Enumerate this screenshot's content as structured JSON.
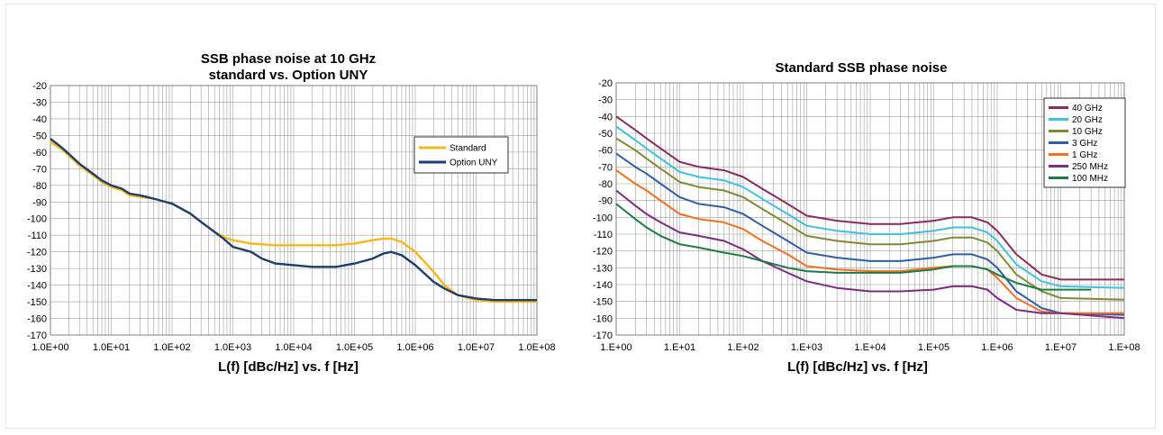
{
  "chart_data": [
    {
      "type": "line",
      "title": "SSB phase noise at 10 GHz",
      "subtitle": "standard vs. Option UNY",
      "xlabel": "L(f) [dBc/Hz] vs. f [Hz]",
      "ylabel": "",
      "x_scale": "log",
      "xlim": [
        1,
        100000000
      ],
      "ylim": [
        -170,
        -20
      ],
      "x_tick_labels": [
        "1.0E+00",
        "1.0E+01",
        "1.0E+02",
        "1.0E+03",
        "1.0E+04",
        "1.0E+05",
        "1.0E+06",
        "1.0E+07",
        "1.0E+08"
      ],
      "y_tick_labels": [
        "-20",
        "-30",
        "-40",
        "-50",
        "-60",
        "-70",
        "-80",
        "-90",
        "-100",
        "-110",
        "-120",
        "-130",
        "-140",
        "-150",
        "-160",
        "-170"
      ],
      "grid": true,
      "legend_position": "right",
      "series": [
        {
          "name": "Standard",
          "color": "#f5b81c",
          "x": [
            1,
            1.5,
            2,
            3,
            5,
            7,
            10,
            15,
            20,
            30,
            50,
            100,
            200,
            300,
            500,
            700,
            1000,
            2000,
            5000,
            10000,
            20000,
            50000,
            100000,
            200000,
            300000,
            400000,
            600000,
            1000000,
            2000000,
            3000000,
            5000000,
            10000000,
            20000000,
            50000000,
            100000000
          ],
          "y": [
            -54,
            -58,
            -62,
            -68,
            -74,
            -78,
            -81,
            -83,
            -86,
            -87,
            -88,
            -91,
            -97,
            -102,
            -108,
            -111,
            -113,
            -115,
            -116,
            -116,
            -116,
            -116,
            -115,
            -113,
            -112,
            -112,
            -114,
            -120,
            -132,
            -140,
            -146,
            -149,
            -150,
            -150,
            -150
          ]
        },
        {
          "name": "Option UNY",
          "color": "#1f3e6e",
          "x": [
            1,
            1.5,
            2,
            3,
            5,
            7,
            10,
            15,
            20,
            30,
            50,
            100,
            200,
            300,
            500,
            700,
            1000,
            2000,
            3000,
            5000,
            10000,
            20000,
            50000,
            100000,
            200000,
            300000,
            400000,
            600000,
            1000000,
            2000000,
            3000000,
            5000000,
            10000000,
            20000000,
            50000000,
            100000000
          ],
          "y": [
            -52,
            -57,
            -61,
            -67,
            -73,
            -77,
            -80,
            -82,
            -85,
            -86,
            -88,
            -91,
            -97,
            -102,
            -108,
            -112,
            -117,
            -120,
            -124,
            -127,
            -128,
            -129,
            -129,
            -127,
            -124,
            -121,
            -120,
            -122,
            -128,
            -138,
            -142,
            -146,
            -148,
            -149,
            -149,
            -149
          ]
        }
      ]
    },
    {
      "type": "line",
      "title": "Standard SSB phase noise",
      "xlabel": "L(f) [dBc/Hz] vs. f [Hz]",
      "ylabel": "",
      "x_scale": "log",
      "xlim": [
        1,
        100000000
      ],
      "ylim": [
        -170,
        -20
      ],
      "x_tick_labels": [
        "1.E+00",
        "1.E+01",
        "1.E+02",
        "1.E+03",
        "1.E+04",
        "1.E+05",
        "1.E+06",
        "1.E+07",
        "1.E+08"
      ],
      "y_tick_labels": [
        "-20",
        "-30",
        "-40",
        "-50",
        "-60",
        "-70",
        "-80",
        "-90",
        "-100",
        "-110",
        "-120",
        "-130",
        "-140",
        "-150",
        "-160",
        "-170"
      ],
      "grid": true,
      "legend_position": "top-right",
      "series": [
        {
          "name": "40 GHz",
          "color": "#8c2a5e",
          "x": [
            1,
            2,
            3,
            5,
            10,
            20,
            50,
            100,
            200,
            500,
            1000,
            3000,
            10000,
            30000,
            100000,
            200000,
            400000,
            700000,
            1000000,
            2000000,
            5000000,
            10000000,
            100000000
          ],
          "y": [
            -40,
            -48,
            -53,
            -59,
            -67,
            -70,
            -72,
            -76,
            -83,
            -92,
            -99,
            -102,
            -104,
            -104,
            -102,
            -100,
            -100,
            -103,
            -108,
            -122,
            -134,
            -137,
            -137
          ]
        },
        {
          "name": "20 GHz",
          "color": "#3fc1e0",
          "x": [
            1,
            2,
            3,
            5,
            10,
            20,
            50,
            100,
            200,
            500,
            1000,
            3000,
            10000,
            30000,
            100000,
            200000,
            400000,
            700000,
            1000000,
            2000000,
            5000000,
            10000000,
            100000000
          ],
          "y": [
            -46,
            -54,
            -59,
            -65,
            -73,
            -76,
            -78,
            -82,
            -89,
            -98,
            -105,
            -108,
            -110,
            -110,
            -108,
            -106,
            -106,
            -109,
            -114,
            -128,
            -138,
            -141,
            -142
          ]
        },
        {
          "name": "10 GHz",
          "color": "#808a34",
          "x": [
            1,
            2,
            3,
            5,
            10,
            20,
            50,
            100,
            200,
            500,
            1000,
            3000,
            10000,
            30000,
            100000,
            200000,
            400000,
            700000,
            1000000,
            2000000,
            5000000,
            10000000,
            100000000
          ],
          "y": [
            -53,
            -60,
            -65,
            -71,
            -79,
            -82,
            -84,
            -88,
            -95,
            -104,
            -111,
            -114,
            -116,
            -116,
            -114,
            -112,
            -112,
            -115,
            -120,
            -134,
            -144,
            -148,
            -149
          ]
        },
        {
          "name": "3 GHz",
          "color": "#2e5ea8",
          "x": [
            1,
            2,
            3,
            5,
            10,
            20,
            50,
            100,
            200,
            500,
            1000,
            3000,
            10000,
            30000,
            100000,
            200000,
            400000,
            700000,
            1000000,
            2000000,
            5000000,
            10000000,
            100000000
          ],
          "y": [
            -62,
            -70,
            -74,
            -80,
            -88,
            -92,
            -94,
            -98,
            -105,
            -114,
            -121,
            -124,
            -126,
            -126,
            -124,
            -122,
            -122,
            -125,
            -130,
            -144,
            -154,
            -157,
            -158
          ]
        },
        {
          "name": "1 GHz",
          "color": "#f36f21",
          "x": [
            1,
            2,
            3,
            5,
            10,
            20,
            50,
            100,
            200,
            500,
            1000,
            3000,
            10000,
            30000,
            100000,
            200000,
            400000,
            700000,
            1000000,
            2000000,
            5000000,
            10000000,
            100000000
          ],
          "y": [
            -72,
            -80,
            -84,
            -90,
            -98,
            -101,
            -103,
            -107,
            -114,
            -122,
            -129,
            -131,
            -132,
            -132,
            -130,
            -129,
            -129,
            -131,
            -136,
            -148,
            -156,
            -157,
            -157
          ]
        },
        {
          "name": "250 MHz",
          "color": "#7b2c80",
          "x": [
            1,
            2,
            3,
            5,
            10,
            20,
            50,
            100,
            200,
            500,
            1000,
            3000,
            10000,
            30000,
            100000,
            200000,
            400000,
            700000,
            1000000,
            2000000,
            5000000,
            10000000,
            100000000
          ],
          "y": [
            -84,
            -93,
            -98,
            -103,
            -109,
            -111,
            -114,
            -119,
            -126,
            -133,
            -138,
            -142,
            -144,
            -144,
            -143,
            -141,
            -141,
            -143,
            -148,
            -155,
            -157,
            -157,
            -160
          ]
        },
        {
          "name": "100 MHz",
          "color": "#1e7b45",
          "x": [
            1,
            2,
            3,
            5,
            10,
            20,
            50,
            100,
            200,
            500,
            1000,
            3000,
            10000,
            30000,
            100000,
            200000,
            400000,
            700000,
            1000000,
            2000000,
            5000000,
            10000000,
            30000000
          ],
          "y": [
            -92,
            -101,
            -106,
            -111,
            -116,
            -118,
            -121,
            -123,
            -126,
            -130,
            -132,
            -133,
            -133,
            -133,
            -131,
            -129,
            -129,
            -131,
            -134,
            -139,
            -143,
            -143,
            -143
          ]
        }
      ]
    }
  ]
}
